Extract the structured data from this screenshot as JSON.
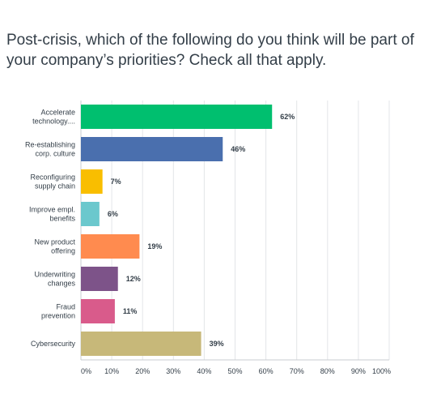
{
  "title": "Post-crisis, which of the following do you think will be part of your company’s priorities? Check all that apply.",
  "chart_data": {
    "type": "bar",
    "orientation": "horizontal",
    "title": "Post-crisis, which of the following do you think will be part of your company’s priorities? Check all that apply.",
    "categories": [
      [
        "Accelerate",
        "technology...."
      ],
      [
        "Re-establishing",
        "corp. culture"
      ],
      [
        "Reconfiguring",
        "supply chain"
      ],
      [
        "Improve empl.",
        "benefits"
      ],
      [
        "New product",
        "offering"
      ],
      [
        "Underwriting",
        "changes"
      ],
      [
        "Fraud",
        "prevention"
      ],
      [
        "Cybersecurity"
      ]
    ],
    "values": [
      62,
      46,
      7,
      6,
      19,
      12,
      11,
      39
    ],
    "value_labels": [
      "62%",
      "46%",
      "7%",
      "6%",
      "19%",
      "12%",
      "11%",
      "39%"
    ],
    "colors": [
      "#00bf6f",
      "#4a6fae",
      "#f9be00",
      "#6bc8cd",
      "#ff8b4f",
      "#7d5389",
      "#d95b8b",
      "#c7b879"
    ],
    "xlim": [
      0,
      100
    ],
    "x_ticks": [
      "0%",
      "10%",
      "20%",
      "30%",
      "40%",
      "50%",
      "60%",
      "70%",
      "80%",
      "90%",
      "100%"
    ],
    "grid": true
  }
}
